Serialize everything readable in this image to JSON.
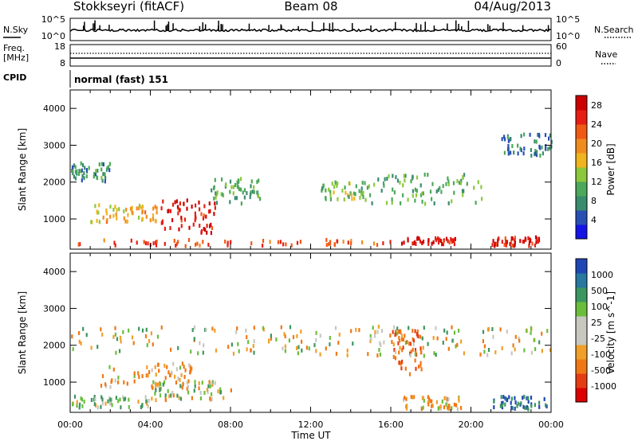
{
  "header": {
    "station": "Stokkseyri (fitACF)",
    "beam": "Beam 08",
    "date": "04/Aug/2013"
  },
  "strip_labels": {
    "nsky": "N.Sky",
    "nsearch": "N.Search",
    "freq": "Freq.",
    "freq_unit": "[MHz]",
    "nave": "Nave",
    "cpid": "CPID",
    "cpid_value": "normal (fast) 151"
  },
  "strip_ticks": {
    "noise_left_top": "10^5",
    "noise_left_bottom": "10^0",
    "noise_right_top": "10^5",
    "noise_right_bottom": "10^0",
    "freq_left_top": "18",
    "freq_left_bottom": "8",
    "nave_right_top": "60",
    "nave_right_bottom": "0"
  },
  "colors": {
    "power_scale": [
      "#1414e6",
      "#2850b4",
      "#3a8c6e",
      "#4ca85a",
      "#8cc83c",
      "#f0b41e",
      "#f08c1e",
      "#f05a14",
      "#e61e14",
      "#cc0000"
    ],
    "velocity_scale": [
      "#1e46b4",
      "#2878a0",
      "#3c9660",
      "#6abe3c",
      "#c8c8c0",
      "#c8c8c0",
      "#f0a028",
      "#f07814",
      "#e63c14",
      "#dc0000"
    ],
    "frame": "#000000"
  },
  "chart_data": [
    {
      "type": "heatmap",
      "panel": "power",
      "xlabel": "Time UT",
      "ylabel": "Slant Range [km]",
      "xlim": [
        "00:00",
        "00:00"
      ],
      "x_ticks": [
        "00:00",
        "04:00",
        "08:00",
        "12:00",
        "16:00",
        "20:00",
        "00:00"
      ],
      "ylim": [
        180,
        4500
      ],
      "y_ticks": [
        "1000",
        "2000",
        "3000",
        "4000"
      ],
      "colorbar_label": "Power [dB]",
      "colorbar_ticks": [
        "4",
        "8",
        "12",
        "16",
        "20",
        "24",
        "28"
      ],
      "colorbar_range": [
        0,
        30
      ],
      "features": [
        {
          "t": [
            0.3,
            16.0
          ],
          "r": [
            250,
            420
          ],
          "level": 24
        },
        {
          "t": [
            16.5,
            19.2
          ],
          "r": [
            300,
            480
          ],
          "level": 28
        },
        {
          "t": [
            21.0,
            23.4
          ],
          "r": [
            250,
            500
          ],
          "level": 28
        },
        {
          "t": [
            4.5,
            7.2
          ],
          "r": [
            600,
            1500
          ],
          "level": 28
        },
        {
          "t": [
            1.0,
            4.5
          ],
          "r": [
            900,
            1400
          ],
          "level": 18
        },
        {
          "t": [
            0.0,
            2.0
          ],
          "r": [
            2000,
            2500
          ],
          "level": 8
        },
        {
          "t": [
            7.0,
            9.5
          ],
          "r": [
            1400,
            2100
          ],
          "level": 10
        },
        {
          "t": [
            12.5,
            15.0
          ],
          "r": [
            1500,
            2000
          ],
          "level": 12
        },
        {
          "t": [
            15.0,
            20.5
          ],
          "r": [
            1400,
            2200
          ],
          "level": 10
        },
        {
          "t": [
            21.5,
            24.0
          ],
          "r": [
            2700,
            3300
          ],
          "level": 6
        }
      ]
    },
    {
      "type": "heatmap",
      "panel": "velocity",
      "xlabel": "Time UT",
      "ylabel": "Slant Range [km]",
      "xlim": [
        "00:00",
        "00:00"
      ],
      "x_ticks": [
        "00:00",
        "04:00",
        "08:00",
        "12:00",
        "16:00",
        "20:00",
        "00:00"
      ],
      "ylim": [
        180,
        4500
      ],
      "y_ticks": [
        "1000",
        "2000",
        "3000",
        "4000"
      ],
      "colorbar_label": "Velocity [m s^-1]",
      "colorbar_ticks": [
        "1000",
        "500",
        "100",
        "25",
        "-25",
        "-100",
        "-500",
        "-1000"
      ],
      "colorbar_range": [
        -1000,
        1000
      ],
      "features": [
        {
          "t": [
            0.0,
            4.0
          ],
          "r": [
            300,
            600
          ],
          "velocity": 100
        },
        {
          "t": [
            1.5,
            6.5
          ],
          "r": [
            800,
            1500
          ],
          "velocity": -100
        },
        {
          "t": [
            4.0,
            8.0
          ],
          "r": [
            500,
            1000
          ],
          "velocity": 0
        },
        {
          "t": [
            16.5,
            19.5
          ],
          "r": [
            250,
            600
          ],
          "velocity": -100
        },
        {
          "t": [
            16.0,
            17.5
          ],
          "r": [
            1200,
            2400
          ],
          "velocity": -500
        },
        {
          "t": [
            0.0,
            24.0
          ],
          "r": [
            1700,
            2500
          ],
          "velocity": 0
        },
        {
          "t": [
            21.0,
            24.0
          ],
          "r": [
            250,
            600
          ],
          "velocity": 500
        }
      ]
    }
  ]
}
